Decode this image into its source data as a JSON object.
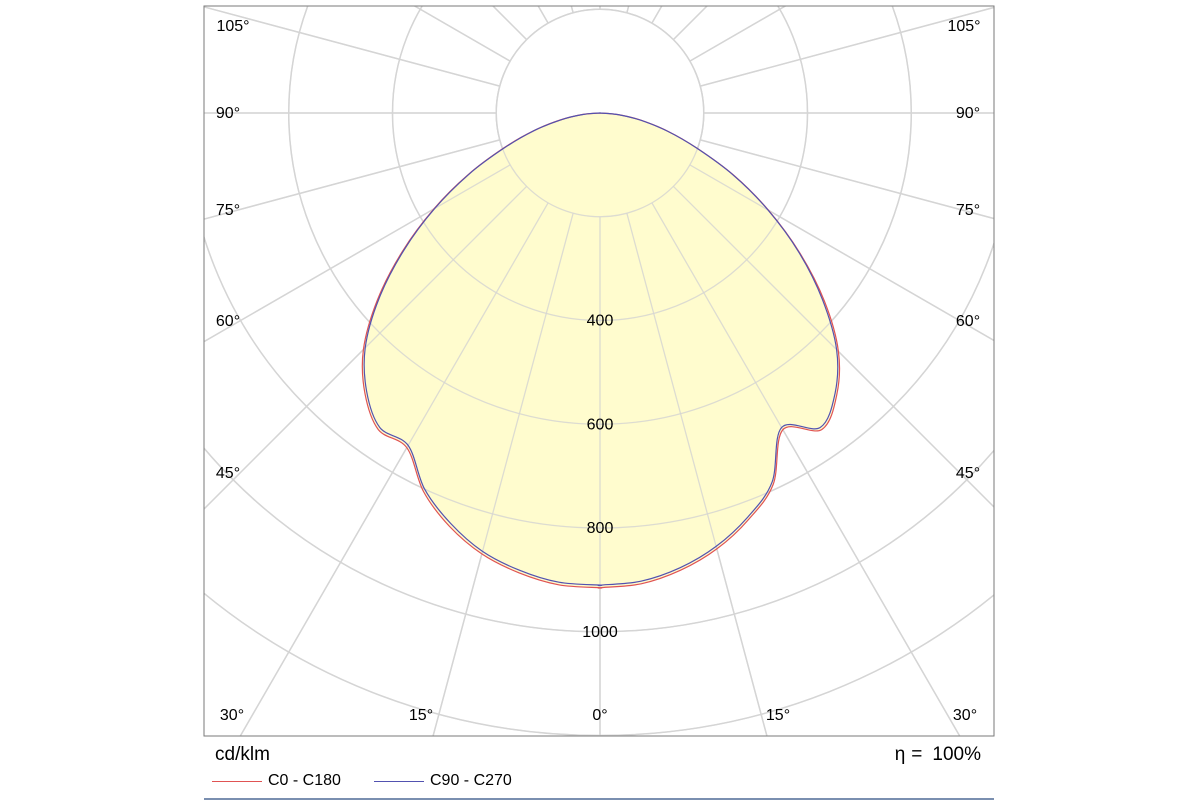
{
  "chart_data": {
    "type": "polar",
    "units_label": "cd/klm",
    "efficiency_symbol": "η",
    "efficiency_equals": "=",
    "efficiency_value": "100%",
    "radial_max": 1200,
    "radial_rings": [
      200,
      400,
      600,
      800,
      1000,
      1200
    ],
    "radial_tick_labels": [
      "400",
      "600",
      "800",
      "1000"
    ],
    "angle_labels_left": [
      "105°",
      "90°",
      "75°",
      "60°",
      "45°",
      "30°",
      "15°"
    ],
    "angle_labels_right": [
      "105°",
      "90°",
      "75°",
      "60°",
      "45°",
      "30°",
      "15°"
    ],
    "angle_labels_center": "0°",
    "angle_step_deg": 15,
    "grid": true,
    "fill_color": "#fffbc6",
    "grid_color": "#d4d4d4",
    "series": [
      {
        "name": "C0 - C180",
        "color": "#e05353",
        "angles_deg": [
          0,
          5,
          10,
          15,
          20,
          25,
          30,
          35,
          40,
          45,
          50,
          55,
          60,
          65,
          70,
          75,
          80,
          85,
          90
        ],
        "intensity": [
          915,
          911,
          895,
          870,
          835,
          790,
          705,
          745,
          710,
          650,
          565,
          470,
          375,
          285,
          200,
          135,
          80,
          35,
          0
        ],
        "intensity_opposite": [
          915,
          913,
          900,
          880,
          848,
          805,
          745,
          745,
          705,
          645,
          560,
          465,
          370,
          280,
          198,
          133,
          78,
          34,
          0
        ]
      },
      {
        "name": "C90 - C270",
        "color": "#5252b0",
        "angles_deg": [
          0,
          5,
          10,
          15,
          20,
          25,
          30,
          35,
          40,
          45,
          50,
          55,
          60,
          65,
          70,
          75,
          80,
          85,
          90
        ],
        "intensity": [
          910,
          906,
          890,
          865,
          830,
          785,
          700,
          740,
          705,
          645,
          560,
          468,
          374,
          284,
          199,
          134,
          79,
          35,
          0
        ],
        "intensity_opposite": [
          910,
          908,
          895,
          875,
          842,
          800,
          740,
          740,
          700,
          640,
          556,
          462,
          368,
          278,
          196,
          132,
          77,
          33,
          0
        ]
      }
    ]
  }
}
